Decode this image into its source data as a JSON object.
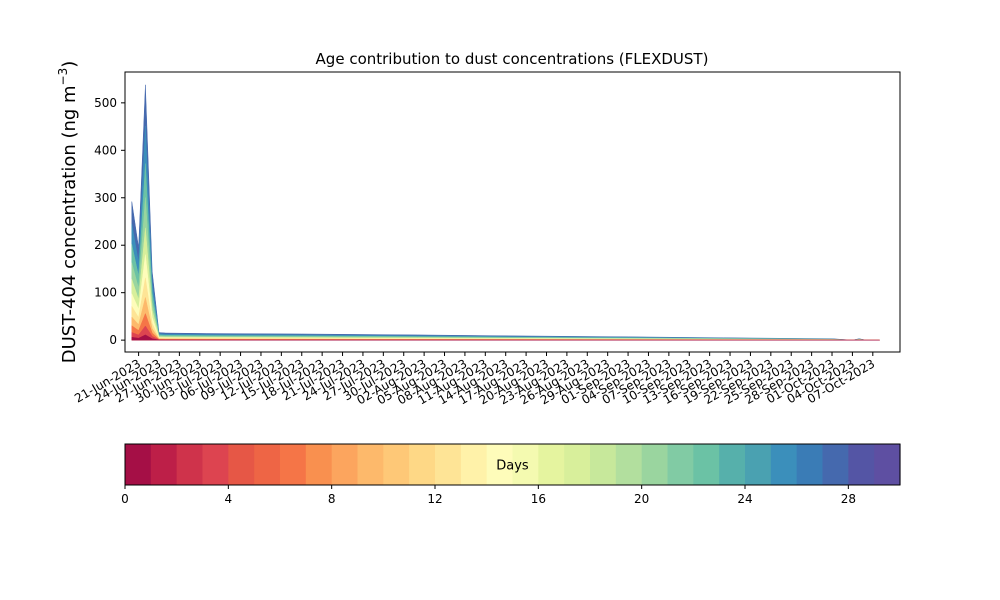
{
  "chart_data": {
    "type": "area",
    "stacked": true,
    "title": "Age contribution to dust concentrations (FLEXDUST)",
    "ylabel": "DUST-404 concentration (ng m",
    "ylabel_unit_sup": "−3",
    "xlabel": "",
    "ylim": [
      -25,
      565
    ],
    "xlim": [
      "2023-06-19",
      "2023-10-11"
    ],
    "y_ticks": [
      0,
      100,
      200,
      300,
      400,
      500
    ],
    "x_tick_labels": [
      "21-Jun-2023",
      "24-Jun-2023",
      "27-Jun-2023",
      "30-Jun-2023",
      "03-Jul-2023",
      "06-Jul-2023",
      "09-Jul-2023",
      "12-Jul-2023",
      "15-Jul-2023",
      "18-Jul-2023",
      "21-Jul-2023",
      "24-Jul-2023",
      "27-Jul-2023",
      "30-Jul-2023",
      "02-Aug-2023",
      "05-Aug-2023",
      "08-Aug-2023",
      "11-Aug-2023",
      "14-Aug-2023",
      "17-Aug-2023",
      "20-Aug-2023",
      "23-Aug-2023",
      "26-Aug-2023",
      "29-Aug-2023",
      "01-Sep-2023",
      "04-Sep-2023",
      "07-Sep-2023",
      "10-Sep-2023",
      "13-Sep-2023",
      "16-Sep-2023",
      "19-Sep-2023",
      "22-Sep-2023",
      "25-Sep-2023",
      "28-Sep-2023",
      "01-Oct-2023",
      "04-Oct-2023",
      "07-Oct-2023"
    ],
    "grid": false,
    "legend": "colorbar-below",
    "colormap": "Spectral",
    "age_bins_days": 30,
    "x_dates": [
      "2023-06-20",
      "2023-06-21",
      "2023-06-22",
      "2023-06-23",
      "2023-06-24",
      "2023-06-25",
      "2023-07-01",
      "2023-07-15",
      "2023-08-01",
      "2023-08-15",
      "2023-09-01",
      "2023-09-15",
      "2023-10-01",
      "2023-10-04",
      "2023-10-05",
      "2023-10-06",
      "2023-10-08"
    ],
    "total_values": [
      292,
      195,
      538,
      145,
      16,
      15,
      14,
      13,
      11,
      9,
      7,
      5,
      3,
      0,
      3,
      0,
      0
    ],
    "colorbar": {
      "label": "Days",
      "min": 0,
      "max": 30,
      "tick_values": [
        0,
        4,
        8,
        12,
        16,
        20,
        24,
        28
      ],
      "tick_labels": [
        "0",
        "4",
        "8",
        "12",
        "16",
        "20",
        "24",
        "28"
      ],
      "colors": [
        "#a50f46",
        "#bd1f48",
        "#cf334b",
        "#dd4450",
        "#e65746",
        "#ee6545",
        "#f57547",
        "#f9904f",
        "#fca55e",
        "#fdb96b",
        "#fec877",
        "#fed886",
        "#fee496",
        "#fff2a9",
        "#fefcba",
        "#f4fab0",
        "#e5f49f",
        "#d8ef9b",
        "#c7e89b",
        "#b2df9e",
        "#9ad59f",
        "#81cba4",
        "#6bc2a5",
        "#56b0ab",
        "#4aa1b1",
        "#3b8fbb",
        "#3a7cb6",
        "#4569ae",
        "#5455a5",
        "#5e4fa2"
      ]
    },
    "age_area_colors": [
      "#a50f46",
      "#dd4450",
      "#f57547",
      "#fdb96b",
      "#fee496",
      "#fefcba",
      "#d8ef9b",
      "#9ad59f",
      "#6bc2a5",
      "#3b8fbb",
      "#4569ae"
    ]
  }
}
